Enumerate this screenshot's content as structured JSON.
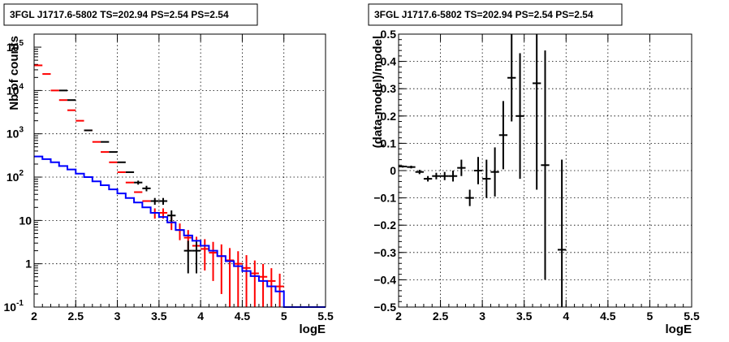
{
  "chart_data": [
    {
      "type": "scatter",
      "title": "3FGL J1717.6-5802 TS=202.94 PS=2.54 PS=2.54",
      "xlabel": "logE",
      "ylabel": "Nb of counts",
      "xlim": [
        2,
        5.5
      ],
      "ylim": [
        0.1,
        200000
      ],
      "yscale": "log",
      "grid": true,
      "x_ticks": [
        "2",
        "2.5",
        "3",
        "3.5",
        "4",
        "4.5",
        "5",
        "5.5"
      ],
      "y_ticks": [
        {
          "value": 0.1,
          "label": "10",
          "exp": "-1"
        },
        {
          "value": 1,
          "label": "1",
          "exp": ""
        },
        {
          "value": 10,
          "label": "10",
          "exp": ""
        },
        {
          "value": 100,
          "label": "10",
          "exp": "2"
        },
        {
          "value": 1000,
          "label": "10",
          "exp": "3"
        },
        {
          "value": 10000,
          "label": "10",
          "exp": "4"
        },
        {
          "value": 100000,
          "label": "10",
          "exp": "5"
        }
      ],
      "colors": {
        "data": "#000000",
        "model": "#ff0000",
        "background": "#0000ff"
      },
      "series": [
        {
          "kind": "model-points",
          "color": "#ff0000",
          "x": [
            2.05,
            2.15,
            2.25,
            2.35,
            2.45,
            2.55,
            2.65,
            2.75,
            2.85,
            2.95,
            3.05,
            3.15,
            3.25,
            3.35,
            3.45,
            3.55,
            3.65,
            3.75,
            3.85,
            3.95,
            4.05,
            4.15,
            4.25,
            4.35,
            4.45,
            4.55,
            4.65,
            4.75,
            4.85,
            4.95
          ],
          "y": [
            38000,
            24000,
            10000,
            6000,
            3500,
            2000,
            1200,
            650,
            380,
            220,
            130,
            75,
            45,
            28,
            15,
            15,
            9,
            6,
            4,
            2.6,
            2.2,
            1.8,
            1.5,
            1.2,
            1.0,
            0.8,
            0.6,
            0.5,
            0.4,
            0.3
          ],
          "yerr": [
            0,
            0,
            0,
            0,
            0,
            0,
            0,
            0,
            0,
            0,
            0,
            0,
            0,
            0,
            4,
            4,
            3,
            2.5,
            2,
            1.6,
            1.5,
            1.4,
            1.3,
            1.1,
            0.95,
            0.78,
            0.59,
            0.49,
            0.39,
            0.29
          ]
        },
        {
          "kind": "data-points",
          "color": "#000000",
          "x": [
            2.35,
            2.45,
            2.65,
            2.85,
            2.95,
            3.05,
            3.15,
            3.25,
            3.35,
            3.45,
            3.55,
            3.65,
            3.85,
            3.95
          ],
          "y": [
            10000,
            6000,
            1200,
            650,
            380,
            220,
            130,
            75,
            55,
            28,
            28,
            13,
            2,
            2
          ],
          "yerr": [
            0,
            0,
            0,
            0,
            0,
            0,
            0,
            8,
            8,
            5,
            5,
            4,
            1.4,
            1.4
          ]
        },
        {
          "kind": "background-step",
          "color": "#0000ff",
          "x_edges": [
            2.0,
            2.1,
            2.2,
            2.3,
            2.4,
            2.5,
            2.6,
            2.7,
            2.8,
            2.9,
            3.0,
            3.1,
            3.2,
            3.3,
            3.4,
            3.5,
            3.6,
            3.7,
            3.8,
            3.9,
            4.0,
            4.1,
            4.2,
            4.3,
            4.4,
            4.5,
            4.6,
            4.7,
            4.8,
            4.9,
            5.0,
            5.1,
            5.5
          ],
          "y": [
            300,
            260,
            220,
            180,
            150,
            120,
            100,
            80,
            65,
            52,
            42,
            33,
            26,
            20,
            15,
            12,
            9,
            6,
            4.5,
            3.4,
            2.6,
            2.0,
            1.5,
            1.15,
            0.88,
            0.68,
            0.52,
            0.4,
            0.3,
            0.23,
            0.1,
            0.1
          ]
        }
      ]
    },
    {
      "type": "scatter",
      "title": "3FGL J1717.6-5802 TS=202.94 PS=2.54 PS=2.54",
      "xlabel": "logE",
      "ylabel": "(data-model)/model",
      "xlim": [
        2,
        5.5
      ],
      "ylim": [
        -0.5,
        0.5
      ],
      "grid": true,
      "x_ticks": [
        "2",
        "2.5",
        "3",
        "3.5",
        "4",
        "4.5",
        "5",
        "5.5"
      ],
      "y_ticks": [
        {
          "value": -0.5,
          "label": "−0.5"
        },
        {
          "value": -0.4,
          "label": "−0.4"
        },
        {
          "value": -0.3,
          "label": "−0.3"
        },
        {
          "value": -0.2,
          "label": "−0.2"
        },
        {
          "value": -0.1,
          "label": "−0.1"
        },
        {
          "value": 0,
          "label": "0"
        },
        {
          "value": 0.1,
          "label": "0.1"
        },
        {
          "value": 0.2,
          "label": "0.2"
        },
        {
          "value": 0.3,
          "label": "0.3"
        },
        {
          "value": 0.4,
          "label": "0.4"
        },
        {
          "value": 0.5,
          "label": "0.5"
        }
      ],
      "series": [
        {
          "kind": "residuals",
          "color": "#000000",
          "x": [
            2.05,
            2.15,
            2.25,
            2.35,
            2.45,
            2.55,
            2.65,
            2.75,
            2.85,
            2.95,
            3.05,
            3.15,
            3.25,
            3.35,
            3.45,
            3.65,
            3.75,
            3.95
          ],
          "y": [
            0.015,
            0.013,
            -0.005,
            -0.03,
            -0.02,
            -0.02,
            -0.02,
            0.01,
            -0.1,
            0.0,
            -0.03,
            -0.005,
            0.13,
            0.34,
            0.2,
            0.32,
            0.02,
            -0.29
          ],
          "yerr": [
            0.004,
            0.005,
            0.008,
            0.01,
            0.012,
            0.015,
            0.02,
            0.03,
            0.03,
            0.05,
            0.07,
            0.09,
            0.125,
            0.16,
            0.23,
            0.39,
            0.42,
            0.33
          ]
        }
      ]
    }
  ]
}
